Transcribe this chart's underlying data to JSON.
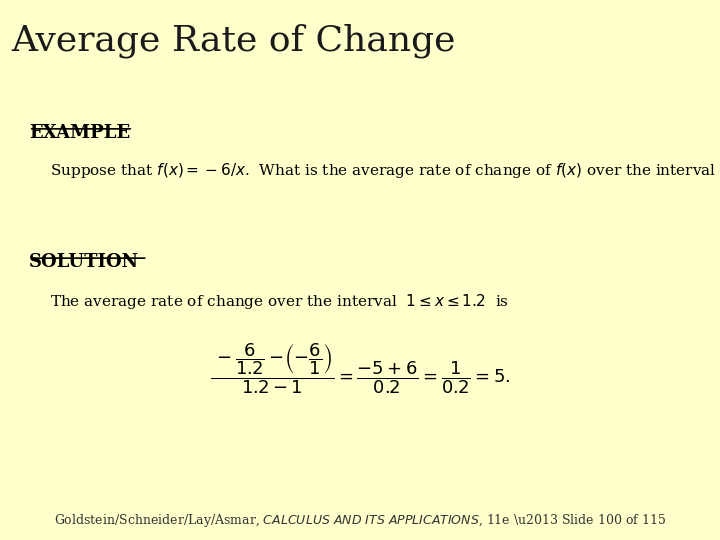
{
  "title": "Average Rate of Change",
  "title_color": "#1a1a1a",
  "title_bg": "#ffffcc",
  "bar_color": "#8b0000",
  "content_bg": "#ffffff",
  "example_label": "EXAMPLE",
  "solution_label": "SOLUTION",
  "footer_bg": "#ffffcc",
  "footer_bar_color": "#8b0000",
  "footer_text": "Goldstein/Schneider/Lay/Asmar, CALCULUS AND ITS APPLICATIONS, 11e – Slide 100 of 115"
}
